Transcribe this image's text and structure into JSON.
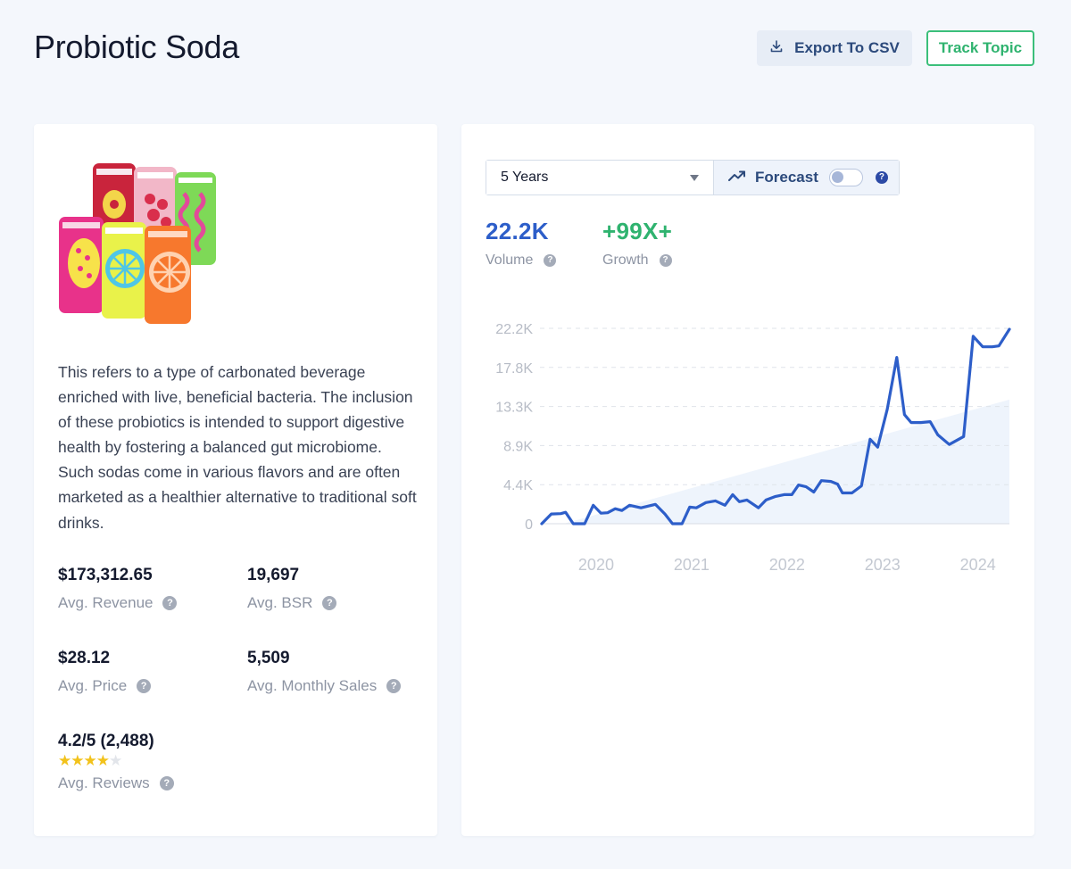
{
  "header": {
    "title": "Probiotic Soda",
    "export_label": "Export To CSV",
    "track_label": "Track Topic"
  },
  "product": {
    "image_icon": "soda-cans-image",
    "description": "This refers to a type of carbonated beverage enriched with live, beneficial bacteria. The inclusion of these probiotics is intended to support digestive health by fostering a balanced gut microbiome. Such sodas come in various flavors and are often marketed as a healthier alternative to traditional soft drinks."
  },
  "metrics": {
    "revenue": {
      "value": "$173,312.65",
      "label": "Avg. Revenue"
    },
    "bsr": {
      "value": "19,697",
      "label": "Avg. BSR"
    },
    "price": {
      "value": "$28.12",
      "label": "Avg. Price"
    },
    "monthly_sales": {
      "value": "5,509",
      "label": "Avg. Monthly Sales"
    },
    "reviews": {
      "value": "4.2/5 (2,488)",
      "label": "Avg. Reviews",
      "stars_filled": 4,
      "stars_total": 5
    }
  },
  "trend": {
    "range_selected": "5 Years",
    "forecast_label": "Forecast",
    "forecast_enabled": false,
    "volume": {
      "value": "22.2K",
      "label": "Volume"
    },
    "growth": {
      "value": "+99X+",
      "label": "Growth"
    }
  },
  "colors": {
    "accent_blue": "#2d5ec9",
    "growth_green": "#2fb36f",
    "star_yellow": "#f2c21b"
  },
  "chart_data": {
    "type": "line",
    "title": "",
    "xlabel": "",
    "ylabel": "",
    "ylim": [
      0,
      22200
    ],
    "y_ticks": [
      "0",
      "4.4K",
      "8.9K",
      "13.3K",
      "17.8K",
      "22.2K"
    ],
    "y_tick_values": [
      0,
      4440,
      8880,
      13320,
      17760,
      22200
    ],
    "x_ticks": [
      "2020",
      "2021",
      "2022",
      "2023",
      "2024"
    ],
    "x_tick_values": [
      2020.0,
      2021.0,
      2022.0,
      2023.0,
      2024.0
    ],
    "xlim": [
      2019.43,
      2024.33
    ],
    "grid": true,
    "series": [
      {
        "values": [
          [
            2019.43,
            0
          ],
          [
            2019.53,
            1100
          ],
          [
            2019.63,
            1150
          ],
          [
            2019.68,
            1300
          ],
          [
            2019.76,
            0
          ],
          [
            2019.88,
            0
          ],
          [
            2019.97,
            2100
          ],
          [
            2020.05,
            1200
          ],
          [
            2020.12,
            1250
          ],
          [
            2020.2,
            1700
          ],
          [
            2020.27,
            1500
          ],
          [
            2020.35,
            2100
          ],
          [
            2020.47,
            1800
          ],
          [
            2020.62,
            2200
          ],
          [
            2020.72,
            1100
          ],
          [
            2020.8,
            0
          ],
          [
            2020.9,
            0
          ],
          [
            2020.98,
            1900
          ],
          [
            2021.05,
            1800
          ],
          [
            2021.15,
            2400
          ],
          [
            2021.25,
            2600
          ],
          [
            2021.35,
            2100
          ],
          [
            2021.43,
            3300
          ],
          [
            2021.5,
            2500
          ],
          [
            2021.58,
            2700
          ],
          [
            2021.7,
            1800
          ],
          [
            2021.78,
            2700
          ],
          [
            2021.88,
            3100
          ],
          [
            2021.97,
            3300
          ],
          [
            2022.05,
            3300
          ],
          [
            2022.12,
            4400
          ],
          [
            2022.2,
            4200
          ],
          [
            2022.28,
            3600
          ],
          [
            2022.36,
            4900
          ],
          [
            2022.46,
            4800
          ],
          [
            2022.53,
            4500
          ],
          [
            2022.58,
            3500
          ],
          [
            2022.68,
            3500
          ],
          [
            2022.78,
            4300
          ],
          [
            2022.87,
            9600
          ],
          [
            2022.95,
            8700
          ],
          [
            2023.05,
            13000
          ],
          [
            2023.15,
            18900
          ],
          [
            2023.23,
            12400
          ],
          [
            2023.3,
            11500
          ],
          [
            2023.4,
            11500
          ],
          [
            2023.5,
            11600
          ],
          [
            2023.58,
            10100
          ],
          [
            2023.7,
            9000
          ],
          [
            2023.85,
            9900
          ],
          [
            2023.95,
            21300
          ],
          [
            2024.05,
            20100
          ],
          [
            2024.15,
            20100
          ],
          [
            2024.22,
            20200
          ],
          [
            2024.33,
            22100
          ]
        ]
      }
    ],
    "forecast_band": [
      [
        2019.66,
        0
      ],
      [
        2024.33,
        14100
      ]
    ]
  }
}
